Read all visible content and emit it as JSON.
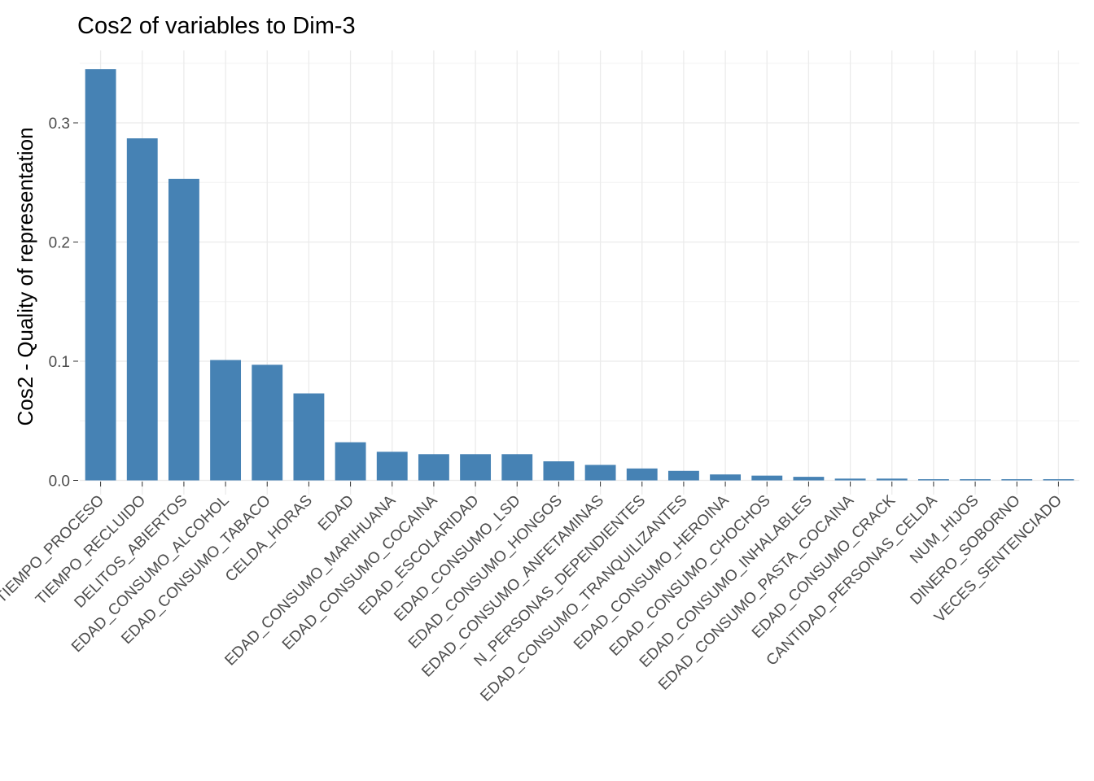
{
  "chart_data": {
    "type": "bar",
    "title": "Cos2 of variables to Dim-3",
    "xlabel": "",
    "ylabel": "Cos2 - Quality of representation",
    "ylim": [
      0,
      0.36
    ],
    "yticks": [
      0.0,
      0.1,
      0.2,
      0.3
    ],
    "ytick_labels": [
      "0.0",
      "0.1",
      "0.2",
      "0.3"
    ],
    "grid": true,
    "bar_color": "#4682B4",
    "categories": [
      "TIEMPO_PROCESO",
      "TIEMPO_RECLUIDO",
      "DELITOS_ABIERTOS",
      "EDAD_CONSUMO_ALCOHOL",
      "EDAD_CONSUMO_TABACO",
      "CELDA_HORAS",
      "EDAD",
      "EDAD_CONSUMO_MARIHUANA",
      "EDAD_CONSUMO_COCAINA",
      "EDAD_ESCOLARIDAD",
      "EDAD_CONSUMO_LSD",
      "EDAD_CONSUMO_HONGOS",
      "EDAD_CONSUMO_ANFETAMINAS",
      "N_PERSONAS_DEPENDIENTES",
      "EDAD_CONSUMO_TRANQUILIZANTES",
      "EDAD_CONSUMO_HEROINA",
      "EDAD_CONSUMO_CHOCHOS",
      "EDAD_CONSUMO_INHALABLES",
      "EDAD_CONSUMO_PASTA_COCAINA",
      "EDAD_CONSUMO_CRACK",
      "CANTIDAD_PERSONAS_CELDA",
      "NUM_HIJOS",
      "DINERO_SOBORNO",
      "VECES_SENTENCIADO"
    ],
    "values": [
      0.345,
      0.287,
      0.253,
      0.101,
      0.097,
      0.073,
      0.032,
      0.024,
      0.022,
      0.022,
      0.022,
      0.016,
      0.013,
      0.01,
      0.008,
      0.005,
      0.004,
      0.003,
      0.0015,
      0.0015,
      0.001,
      0.001,
      0.001,
      0.001
    ]
  }
}
